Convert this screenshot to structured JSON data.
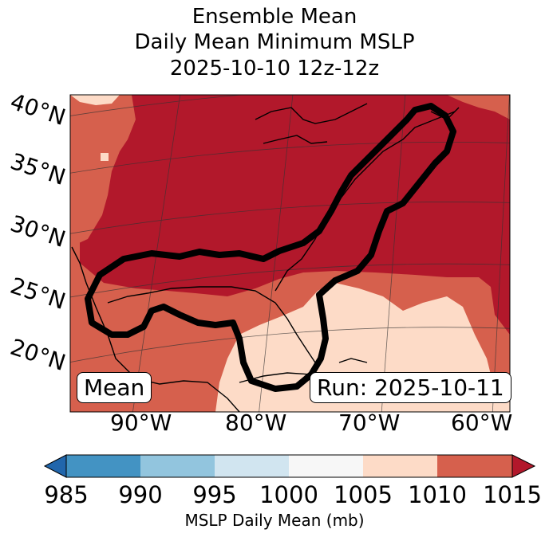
{
  "title": {
    "line1": "Ensemble Mean",
    "line2": "Daily Mean Minimum MSLP",
    "line3": "2025-10-10 12z-12z"
  },
  "map": {
    "lat_labels": [
      "40°N",
      "35°N",
      "30°N",
      "25°N",
      "20°N"
    ],
    "lon_labels": [
      "90°W",
      "80°W",
      "70°W",
      "60°W"
    ],
    "mean_label": "Mean",
    "run_label": "Run: 2025-10-11",
    "contour_color": "#000000",
    "fill_colors": {
      "1005_1010": "#fddbc7",
      "1010_1015": "#d6604d",
      "above_1015": "#b2182b"
    }
  },
  "colorbar": {
    "ticks": [
      "985",
      "990",
      "995",
      "1000",
      "1005",
      "1010",
      "1015"
    ],
    "label": "MSLP Daily Mean (mb)",
    "segments": [
      {
        "range": "<985",
        "color": "#2166ac"
      },
      {
        "range": "985-990",
        "color": "#4393c3"
      },
      {
        "range": "990-995",
        "color": "#92c5de"
      },
      {
        "range": "995-1000",
        "color": "#d1e5f0"
      },
      {
        "range": "1000-1005",
        "color": "#f7f7f7"
      },
      {
        "range": "1005-1010",
        "color": "#fddbc7"
      },
      {
        "range": "1010-1015",
        "color": "#d6604d"
      },
      {
        "range": ">1015",
        "color": "#b2182b"
      }
    ]
  }
}
